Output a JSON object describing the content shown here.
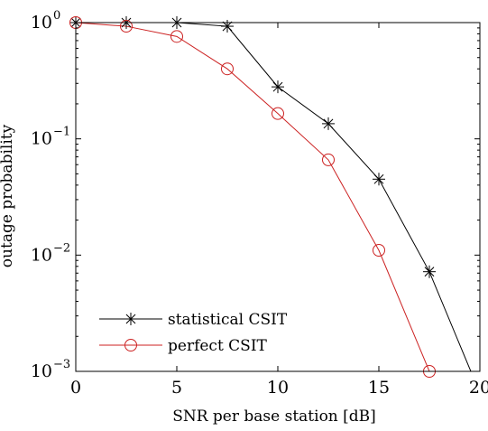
{
  "chart_data": {
    "type": "line",
    "title": "",
    "xlabel": "SNR per base station [dB]",
    "ylabel": "outage probability",
    "xlim": [
      0,
      20
    ],
    "ylim": [
      0.001,
      1
    ],
    "yscale": "log",
    "grid": false,
    "legend_position": "bottom-left",
    "x_ticks": [
      0,
      5,
      10,
      15,
      20
    ],
    "x_tick_labels": [
      "0",
      "5",
      "10",
      "15",
      "20"
    ],
    "y_ticks": [
      {
        "value": 1,
        "base": "10",
        "exp": "0"
      },
      {
        "value": 0.1,
        "base": "10",
        "exp": "−1"
      },
      {
        "value": 0.01,
        "base": "10",
        "exp": "−2"
      },
      {
        "value": 0.001,
        "base": "10",
        "exp": "−3"
      }
    ],
    "series": [
      {
        "name": "statistical CSIT",
        "color": "#000000",
        "marker": "asterisk",
        "x": [
          0,
          2.5,
          5,
          7.5,
          10,
          12.5,
          15,
          17.5,
          20
        ],
        "y": [
          1.0,
          1.0,
          1.0,
          0.93,
          0.28,
          0.135,
          0.045,
          0.0072,
          0.00065
        ]
      },
      {
        "name": "perfect CSIT",
        "color": "#cc2222",
        "marker": "circle",
        "x": [
          0,
          2.5,
          5,
          7.5,
          10,
          12.5,
          15,
          17.5
        ],
        "y": [
          1.0,
          0.93,
          0.76,
          0.4,
          0.165,
          0.066,
          0.011,
          0.001
        ]
      }
    ]
  }
}
